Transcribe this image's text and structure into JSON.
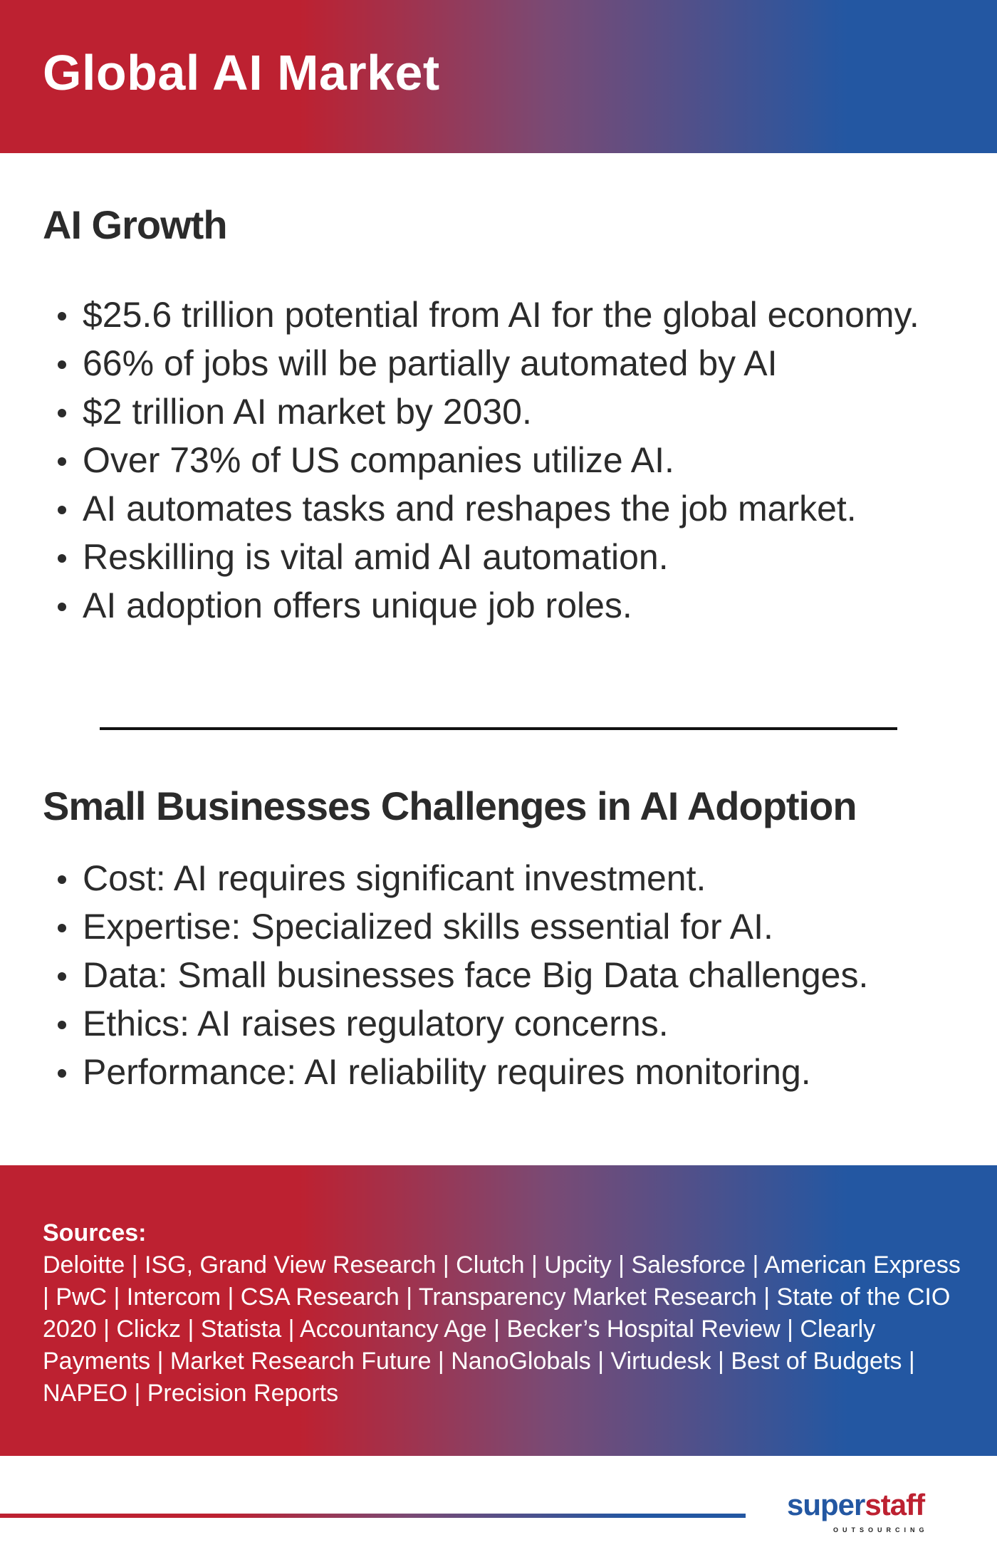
{
  "header": {
    "title": "Global AI Market"
  },
  "colors": {
    "red": "#bd2131",
    "blue": "#2357a2",
    "text": "#2b2b2b"
  },
  "growth": {
    "heading": "AI Growth",
    "items": [
      "$25.6 trillion potential from AI for the global economy.",
      "66% of jobs will be partially automated by AI",
      "$2 trillion AI market by 2030.",
      "Over 73% of US companies utilize AI.",
      "AI automates tasks and reshapes the job market.",
      "Reskilling is vital amid AI automation.",
      "AI adoption offers unique job roles."
    ]
  },
  "challenges": {
    "heading": "Small Businesses Challenges in AI Adoption",
    "items": [
      "Cost: AI requires significant investment.",
      "Expertise: Specialized skills essential for AI.",
      "Data: Small businesses face Big Data challenges.",
      "Ethics: AI raises regulatory concerns.",
      "Performance: AI reliability requires monitoring."
    ]
  },
  "sources": {
    "label": "Sources:",
    "text": "Deloitte | ISG, Grand View Research | Clutch | Upcity | Salesforce | American Express | PwC | Intercom | CSA Research | Transparency Market Research | State of the CIO 2020 | Clickz | Statista | Accountancy Age | Becker’s Hospital Review | Clearly Payments | Market Research Future | NanoGlobals | Virtudesk | Best of Budgets | NAPEO | Precision Reports"
  },
  "logo": {
    "part1": "super",
    "part2": "staff",
    "sub": "OUTSOURCING"
  }
}
